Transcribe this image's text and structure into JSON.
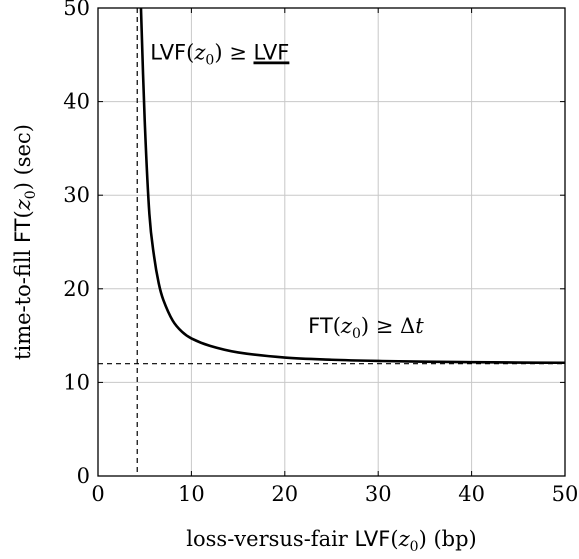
{
  "chart_data": {
    "type": "line",
    "xlabel": "loss-versus-fair LVF(z₀) (bp)",
    "ylabel": "time-to-fill FT(z₀) (sec)",
    "xlim": [
      0,
      50
    ],
    "ylim": [
      0,
      50
    ],
    "x_ticks": [
      "0",
      "10",
      "20",
      "30",
      "40",
      "50"
    ],
    "y_ticks": [
      "0",
      "10",
      "20",
      "30",
      "40",
      "50"
    ],
    "grid": true,
    "series": [
      {
        "x": [
          4.6,
          5.0,
          5.5,
          6.0,
          6.5,
          7.0,
          8.0,
          9.0,
          10.0,
          12.0,
          15.0,
          20.0,
          25.0,
          30.0,
          35.0,
          40.0,
          45.0,
          50.0
        ],
        "y": [
          50.0,
          38.0,
          28.0,
          23.5,
          20.6,
          18.8,
          16.6,
          15.4,
          14.7,
          13.9,
          13.2,
          12.65,
          12.42,
          12.29,
          12.21,
          12.16,
          12.12,
          12.1
        ]
      }
    ],
    "reference_lines": {
      "vertical_x": 4.2,
      "horizontal_y": 12.0
    },
    "annotations": [
      {
        "text_parts": [
          "LVF",
          "(",
          "z",
          "0",
          ") ≥ ",
          "LVF"
        ],
        "x": 5.6,
        "y": 44.5
      },
      {
        "text_parts": [
          "FT",
          "(",
          "z",
          "0",
          ") ≥ Δ",
          "t"
        ],
        "x": 22.5,
        "y": 15.3
      }
    ]
  }
}
